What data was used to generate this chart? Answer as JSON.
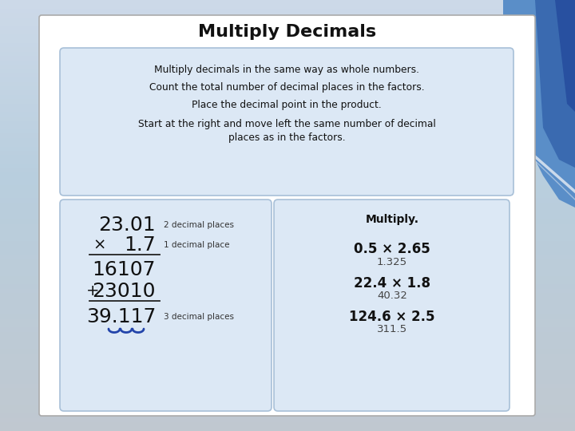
{
  "title": "Multiply Decimals",
  "title_fontsize": 16,
  "instruction_lines": [
    "Multiply decimals in the same way as whole numbers.",
    "Count the total number of decimal places in the factors.",
    "Place the decimal point in the product.",
    "Start at the right and move left the same number of decimal\nplaces as in the factors."
  ],
  "left_box": {
    "number1": "23.01",
    "number1_label": "2 decimal places",
    "number2": "1.7",
    "number2_label": "1 decimal place",
    "multiply_sign": "×",
    "row1": "16107",
    "row2": "23010",
    "result": "39.117",
    "result_label": "3 decimal places"
  },
  "right_box": {
    "header": "Multiply.",
    "problems": [
      {
        "expr": "0.5 × 2.65",
        "answer": "1.325"
      },
      {
        "expr": "22.4 × 1.8",
        "answer": "40.32"
      },
      {
        "expr": "124.6 × 2.5",
        "answer": "311.5"
      }
    ]
  },
  "bg_gradient_top": "#ccd9e8",
  "bg_gradient_mid": "#b8cede",
  "bg_gradient_bot": "#c0c8d0",
  "bg_white_card": "#ffffff",
  "bg_inner_box": "#dce8f5",
  "bg_inner_box_border": "#a8c0d8",
  "text_color_main": "#111111",
  "text_color_label": "#333333",
  "text_color_answer": "#444444",
  "blue_accent1": "#5a8ec8",
  "blue_accent2": "#3a6ab0",
  "blue_accent3": "#2850a0",
  "white_line": "#e8eef5"
}
